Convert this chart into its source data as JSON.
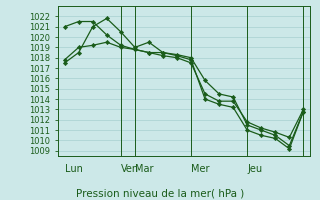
{
  "title": "Pression niveau de la mer( hPa )",
  "bg_color": "#cce8e8",
  "grid_color": "#aed4d4",
  "line_color": "#1a5c1a",
  "ylim": [
    1008.5,
    1023.0
  ],
  "yticks": [
    1009,
    1010,
    1011,
    1012,
    1013,
    1014,
    1015,
    1016,
    1017,
    1018,
    1019,
    1020,
    1021,
    1022
  ],
  "series1_x": [
    0,
    1,
    2,
    3,
    4,
    5,
    6,
    7,
    8,
    9,
    10,
    11,
    12,
    13,
    14,
    15,
    16,
    17
  ],
  "series1_y": [
    1017.5,
    1018.5,
    1021.0,
    1021.8,
    1020.5,
    1019.0,
    1019.5,
    1018.5,
    1018.2,
    1017.8,
    1014.0,
    1013.5,
    1013.2,
    1011.0,
    1010.5,
    1010.2,
    1009.2,
    1012.8
  ],
  "series2_x": [
    0,
    1,
    2,
    3,
    4,
    5,
    6,
    7,
    8,
    9,
    10,
    11,
    12,
    13,
    14,
    15,
    16,
    17
  ],
  "series2_y": [
    1021.0,
    1021.5,
    1021.5,
    1020.2,
    1019.2,
    1018.8,
    1018.5,
    1018.2,
    1018.0,
    1017.5,
    1014.5,
    1013.8,
    1013.8,
    1011.8,
    1011.2,
    1010.8,
    1010.3,
    1013.0
  ],
  "series3_x": [
    0,
    1,
    2,
    3,
    4,
    5,
    6,
    7,
    8,
    9,
    10,
    11,
    12,
    13,
    14,
    15,
    16,
    17
  ],
  "series3_y": [
    1017.8,
    1019.0,
    1019.2,
    1019.5,
    1019.0,
    1018.8,
    1018.5,
    1018.5,
    1018.3,
    1018.0,
    1015.8,
    1014.5,
    1014.2,
    1011.5,
    1011.0,
    1010.5,
    1009.5,
    1012.8
  ],
  "day_vlines": [
    4,
    5,
    9,
    13,
    17
  ],
  "day_labels": [
    [
      "Lun",
      0
    ],
    [
      "Ven",
      4
    ],
    [
      "Mar",
      5
    ],
    [
      "Mer",
      9
    ],
    [
      "Jeu",
      13
    ]
  ],
  "marker": "D",
  "marker_size": 2.2,
  "line_width": 0.9,
  "title_fontsize": 7.5,
  "tick_fontsize": 6.0,
  "day_fontsize": 7.0
}
